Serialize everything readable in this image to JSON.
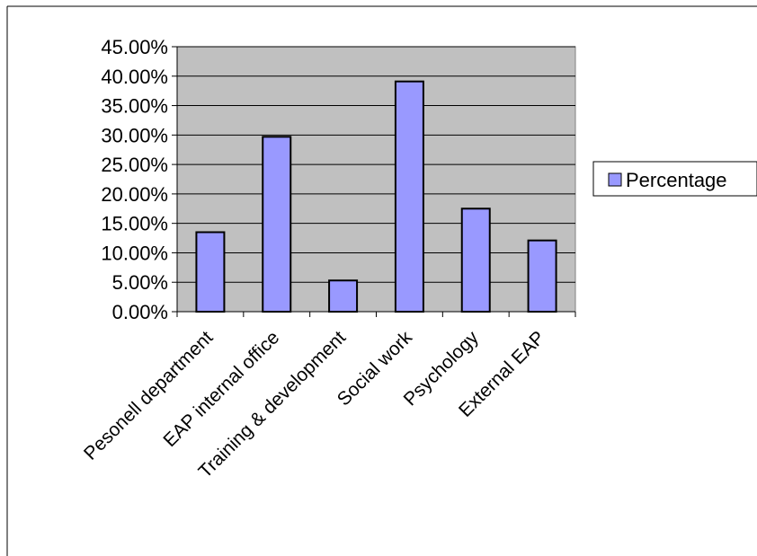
{
  "chart_data": {
    "type": "bar",
    "title": "",
    "xlabel": "",
    "ylabel": "",
    "categories": [
      "Pesonell department",
      "EAP internal office",
      "Training & development",
      "Social work",
      "Psychology",
      "External EAP"
    ],
    "series": [
      {
        "name": "Percentage",
        "values": [
          0.135,
          0.297,
          0.053,
          0.391,
          0.175,
          0.121
        ]
      }
    ],
    "ylim": [
      0,
      0.45
    ],
    "yticks": [
      0,
      0.05,
      0.1,
      0.15,
      0.2,
      0.25,
      0.3,
      0.35,
      0.4,
      0.45
    ],
    "ytick_labels": [
      "0.00%",
      "5.00%",
      "10.00%",
      "15.00%",
      "20.00%",
      "25.00%",
      "30.00%",
      "35.00%",
      "40.00%",
      "45.00%"
    ],
    "grid": true,
    "legend_position": "right",
    "colors": {
      "bar_fill": "#9999ff",
      "plot_background": "#c0c0c0",
      "gridline": "#000000",
      "outline": "#000000"
    }
  }
}
